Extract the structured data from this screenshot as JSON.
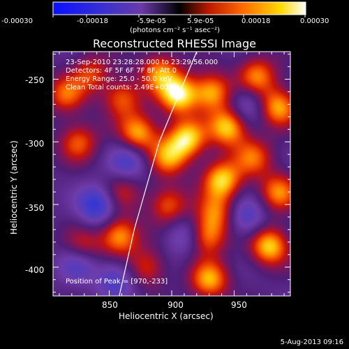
{
  "colorbar": {
    "tick_labels": [
      "-0.00030",
      "-0.00018",
      "-5.9e-05",
      "5.9e-05",
      "0.00018",
      "0.00030"
    ],
    "unit_label": "(photons cm⁻² s⁻¹ asec⁻²)",
    "min": -0.0003,
    "max": 0.0003
  },
  "chart_data": {
    "type": "heatmap",
    "title": "Reconstructed RHESSI Image",
    "xlabel": "Heliocentric X (arcsec)",
    "ylabel": "Heliocentric Y (arcsec)",
    "x_ticks": [
      "850",
      "900",
      "950"
    ],
    "y_ticks": [
      "-250",
      "-300",
      "-350",
      "-400"
    ],
    "xlim": [
      805,
      995
    ],
    "ylim": [
      -423,
      -228
    ],
    "annotations": [
      "23-Sep-2010 23:28:28.000 to 23:29:56.000",
      "Detectors: 4F 5F 6F 7F 8F, Att 0",
      "Energy Range: 25.0 - 50.0 keV",
      "Clean     Total counts: 2.49E+03"
    ],
    "peak_label": "Position of Peak = [970,-233]",
    "peak": [
      970,
      -233
    ],
    "limb_line": [
      [
        920,
        -228
      ],
      [
        890,
        -300
      ],
      [
        870,
        -370
      ],
      [
        858,
        -423
      ]
    ],
    "sources": [
      [
        905,
        -262,
        1.0
      ],
      [
        890,
        -244,
        0.7
      ],
      [
        932,
        -260,
        0.8
      ],
      [
        860,
        -265,
        0.6
      ],
      [
        835,
        -245,
        0.5
      ],
      [
        815,
        -262,
        0.6
      ],
      [
        912,
        -297,
        0.9
      ],
      [
        873,
        -293,
        0.8
      ],
      [
        945,
        -288,
        0.9
      ],
      [
        985,
        -272,
        0.8
      ],
      [
        968,
        -247,
        0.7
      ],
      [
        940,
        -330,
        0.9
      ],
      [
        897,
        -312,
        0.7
      ],
      [
        825,
        -300,
        0.6
      ],
      [
        965,
        -312,
        0.6
      ],
      [
        897,
        -350,
        0.6
      ],
      [
        935,
        -356,
        0.6
      ],
      [
        985,
        -340,
        0.7
      ],
      [
        860,
        -340,
        0.4
      ],
      [
        858,
        -375,
        0.8
      ],
      [
        828,
        -385,
        0.6
      ],
      [
        978,
        -383,
        0.9
      ],
      [
        928,
        -375,
        0.7
      ],
      [
        930,
        -410,
        0.8
      ],
      [
        880,
        -400,
        0.5
      ],
      [
        840,
        -350,
        -0.7
      ],
      [
        825,
        -395,
        -0.6
      ],
      [
        865,
        -315,
        -0.5
      ],
      [
        960,
        -360,
        -0.5
      ],
      [
        910,
        -375,
        -0.4
      ],
      [
        960,
        -270,
        -0.4
      ],
      [
        855,
        -410,
        -0.5
      ]
    ]
  },
  "footer": {
    "date": "5-Aug-2013 09:16"
  }
}
